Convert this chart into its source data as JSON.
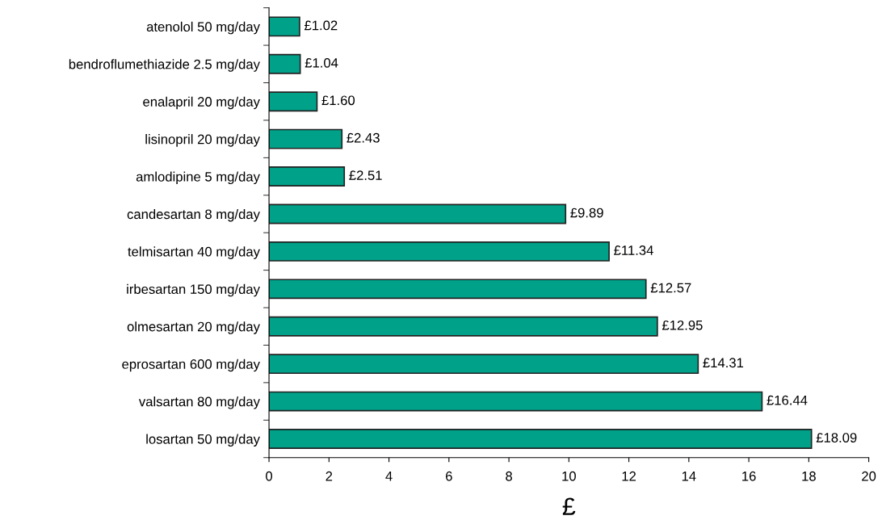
{
  "chart_data": {
    "type": "bar",
    "orientation": "horizontal",
    "xlabel": "£",
    "categories": [
      "atenolol 50 mg/day",
      "bendroflumethiazide 2.5 mg/day",
      "enalapril 20 mg/day",
      "lisinopril 20 mg/day",
      "amlodipine 5 mg/day",
      "candesartan 8 mg/day",
      "telmisartan 40 mg/day",
      "irbesartan 150 mg/day",
      "olmesartan 20 mg/day",
      "eprosartan 600 mg/day",
      "valsartan 80 mg/day",
      "losartan 50 mg/day"
    ],
    "values": [
      1.02,
      1.04,
      1.6,
      2.43,
      2.51,
      9.89,
      11.34,
      12.57,
      12.95,
      14.31,
      16.44,
      18.09
    ],
    "value_labels": [
      "£1.02",
      "£1.04",
      "£1.60",
      "£2.43",
      "£2.51",
      "£9.89",
      "£11.34",
      "£12.57",
      "£12.95",
      "£14.31",
      "£16.44",
      "£18.09"
    ],
    "color": "#00a189",
    "xlim": [
      0,
      20
    ],
    "xticks": [
      0,
      2,
      4,
      6,
      8,
      10,
      12,
      14,
      16,
      18,
      20
    ],
    "grid": false
  }
}
